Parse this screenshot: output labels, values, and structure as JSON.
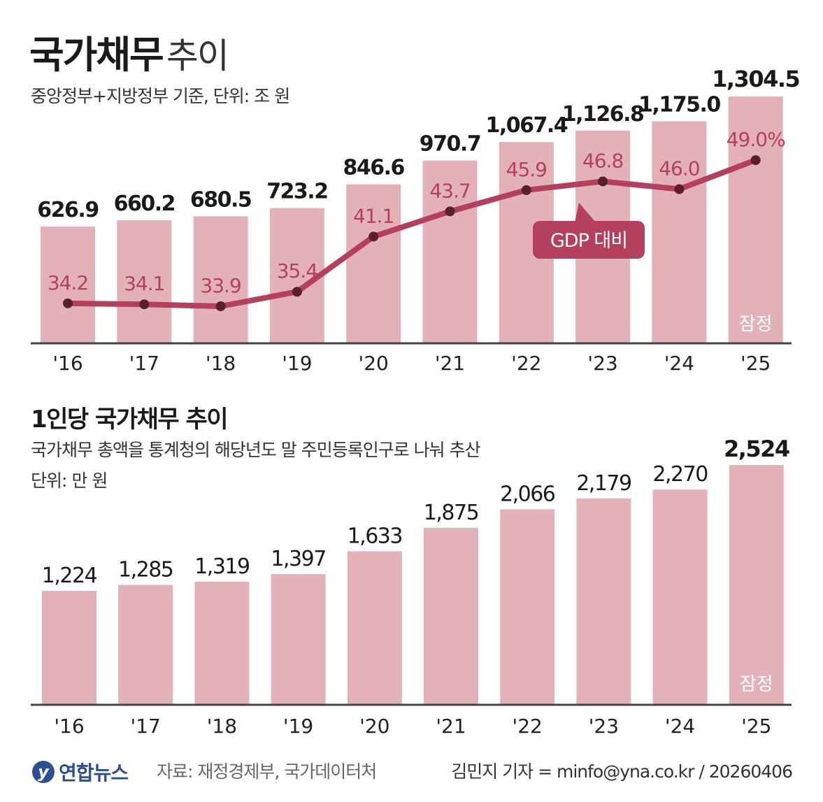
{
  "title": {
    "main": "국가채무",
    "sub": "추이"
  },
  "subtitle": "중앙정부+지방정부 기준, 단위: 조 원",
  "section2": {
    "title": "1인당 국가채무 추이",
    "desc": "국가채무 총액을 통계청의 해당년도 말 주민등록인구로 나눠 추산",
    "unit": "단위: 만 원"
  },
  "provisional_label": "잠정",
  "gdp_callout": "GDP 대비",
  "footer": {
    "logo_mark": "y",
    "logo_text": "연합뉴스",
    "source": "자료: 재정경제부, 국가데이터처",
    "credit": "김민지 기자 = minfo@yna.co.kr / 20260406"
  },
  "colors": {
    "bar": "#e3b1b8",
    "line": "#b5405e",
    "dot": "#5a1f2c",
    "callout": "#b5405e"
  },
  "chart_data": [
    {
      "type": "bar",
      "categories": [
        "'16",
        "'17",
        "'18",
        "'19",
        "'20",
        "'21",
        "'22",
        "'23",
        "'24",
        "'25"
      ],
      "values": [
        626.9,
        660.2,
        680.5,
        723.2,
        846.6,
        970.7,
        1067.4,
        1126.8,
        1175.0,
        1304.5
      ],
      "value_labels": [
        "626.9",
        "660.2",
        "680.5",
        "723.2",
        "846.6",
        "970.7",
        "1,067.4",
        "1,126.8",
        "1,175.0",
        "1,304.5"
      ],
      "line_series": {
        "values": [
          34.2,
          34.1,
          33.9,
          35.4,
          41.1,
          43.7,
          45.9,
          46.8,
          46.0,
          49.0
        ],
        "labels": [
          "34.2",
          "34.1",
          "33.9",
          "35.4",
          "41.1",
          "43.7",
          "45.9",
          "46.8",
          "46.0",
          "49.0%"
        ]
      },
      "grid": false
    },
    {
      "type": "bar",
      "categories": [
        "'16",
        "'17",
        "'18",
        "'19",
        "'20",
        "'21",
        "'22",
        "'23",
        "'24",
        "'25"
      ],
      "values": [
        1224,
        1285,
        1319,
        1397,
        1633,
        1875,
        2066,
        2179,
        2270,
        2524
      ],
      "value_labels": [
        "1,224",
        "1,285",
        "1,319",
        "1,397",
        "1,633",
        "1,875",
        "2,066",
        "2,179",
        "2,270",
        "2,524"
      ],
      "grid": false
    }
  ]
}
